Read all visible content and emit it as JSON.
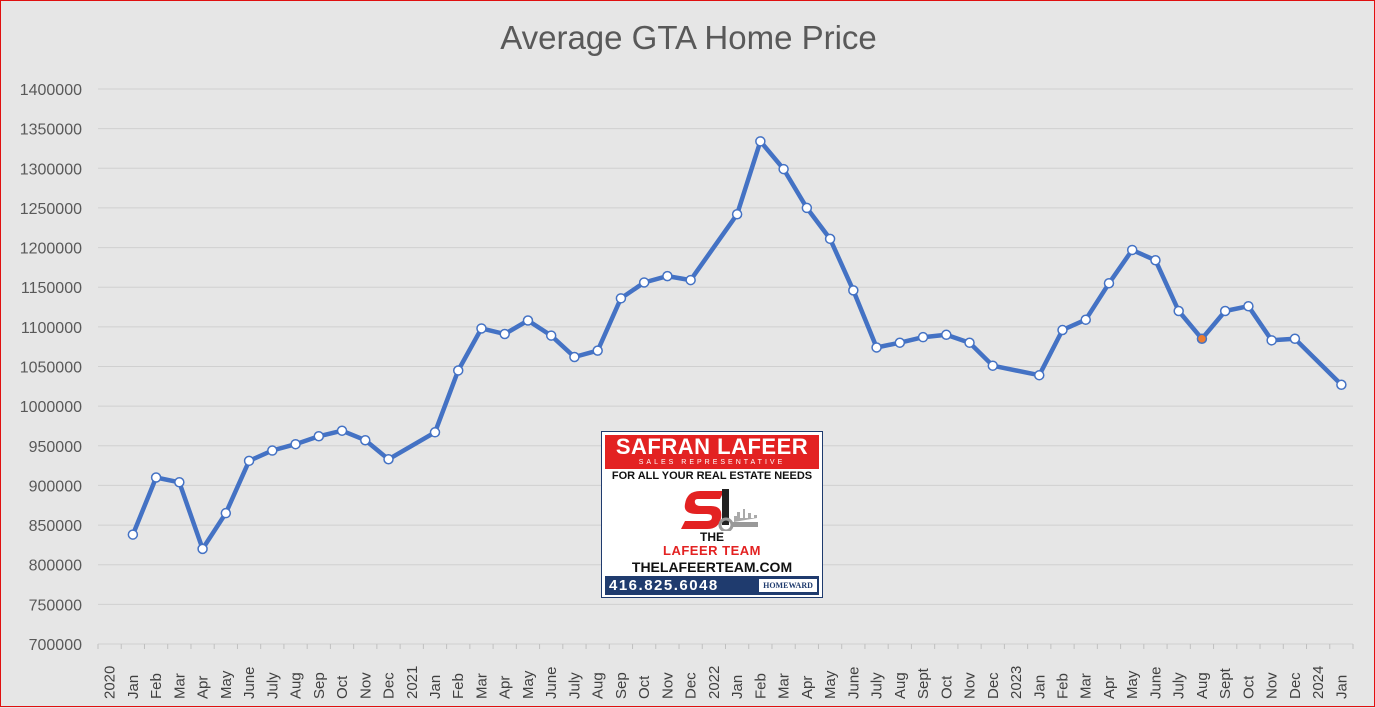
{
  "chart_data": {
    "type": "line",
    "title": "Average GTA  Home Price",
    "xlabel": "",
    "ylabel": "",
    "ylim": [
      700000,
      1400000
    ],
    "yticks": [
      700000,
      750000,
      800000,
      850000,
      900000,
      950000,
      1000000,
      1050000,
      1100000,
      1150000,
      1200000,
      1250000,
      1300000,
      1350000,
      1400000
    ],
    "grid": true,
    "legend": "none",
    "line_color": "#4472c4",
    "highlight_color": "#ed7d31",
    "categories": [
      "2020",
      "Jan",
      "Feb",
      "Mar",
      "Apr",
      "May",
      "June",
      "July",
      "Aug",
      "Sep",
      "Oct",
      "Nov",
      "Dec",
      "2021",
      "Jan",
      "Feb",
      "Mar",
      "Apr",
      "May",
      "June",
      "July",
      "Aug",
      "Sep",
      "Oct",
      "Nov",
      "Dec",
      "2022",
      "Jan",
      "Feb",
      "Mar",
      "Apr",
      "May",
      "June",
      "July",
      "Aug",
      "Sept",
      "Oct",
      "Nov",
      "Dec",
      "2023",
      "Jan",
      "Feb",
      "Mar",
      "Apr",
      "May",
      "June",
      "July",
      "Aug",
      "Sept",
      "Oct",
      "Nov",
      "Dec",
      "2024",
      "Jan"
    ],
    "series": [
      {
        "values": [
          null,
          838000,
          910000,
          904000,
          820000,
          865000,
          931000,
          944000,
          952000,
          962000,
          969000,
          957000,
          933000,
          null,
          967000,
          1045000,
          1098000,
          1091000,
          1108000,
          1089000,
          1062000,
          1070000,
          1136000,
          1156000,
          1164000,
          1159000,
          null,
          1242000,
          1334000,
          1299000,
          1250000,
          1211000,
          1146000,
          1074000,
          1080000,
          1087000,
          1090000,
          1080000,
          1051000,
          null,
          1039000,
          1096000,
          1109000,
          1155000,
          1197000,
          1184000,
          1120000,
          1085000,
          1120000,
          1126000,
          1083000,
          1085000,
          null,
          1027000
        ],
        "highlight_index": 47
      }
    ]
  },
  "logo": {
    "name": "SAFRAN LAFEER",
    "role": "SALES REPRESENTATIVE",
    "tagline": "FOR ALL YOUR REAL ESTATE NEEDS",
    "the": "THE",
    "team": "LAFEER TEAM",
    "url": "THELAFEERTEAM.COM",
    "phone": "416.825.6048",
    "brokerage": "HOMEWARD"
  }
}
